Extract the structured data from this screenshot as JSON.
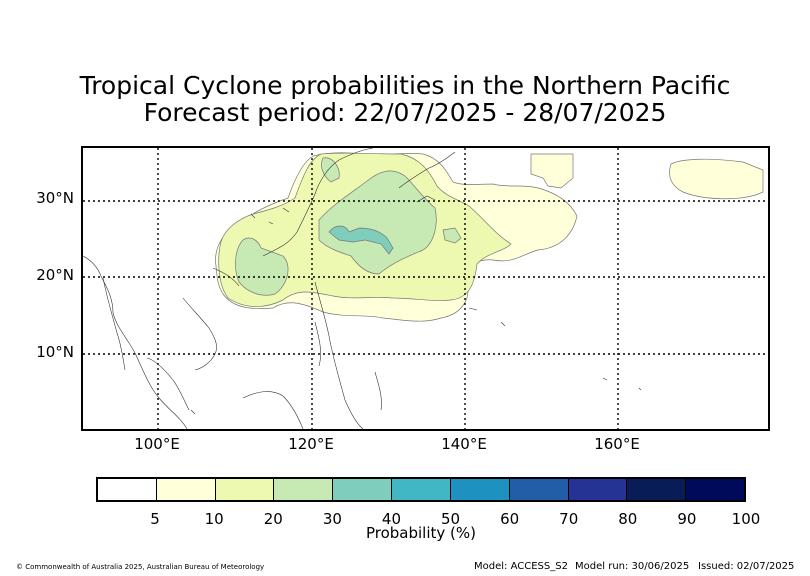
{
  "title": {
    "line1": "Tropical Cyclone probabilities in the Northern Pacific",
    "line2": "Forecast period: 22/07/2025 - 28/07/2025"
  },
  "map": {
    "lat_labels": [
      "30°N",
      "20°N",
      "10°N"
    ],
    "lon_labels": [
      "100°E",
      "120°E",
      "140°E",
      "160°E"
    ]
  },
  "colorbar": {
    "ticks": [
      "5",
      "10",
      "20",
      "30",
      "40",
      "50",
      "60",
      "70",
      "80",
      "90",
      "100"
    ],
    "colors": [
      "#ffffff",
      "#ffffd9",
      "#edf8b1",
      "#c7e9b4",
      "#7fcdbb",
      "#41b6c4",
      "#1d91c0",
      "#225ea8",
      "#253494",
      "#081d58",
      "#000a5a"
    ],
    "label": "Probability (%)"
  },
  "footer": {
    "copyright": "© Commonwealth of Australia 2025, Australian Bureau of Meteorology",
    "model": "Model: ACCESS_S2",
    "model_run": "Model run: 30/06/2025",
    "issued": "Issued: 02/07/2025"
  }
}
